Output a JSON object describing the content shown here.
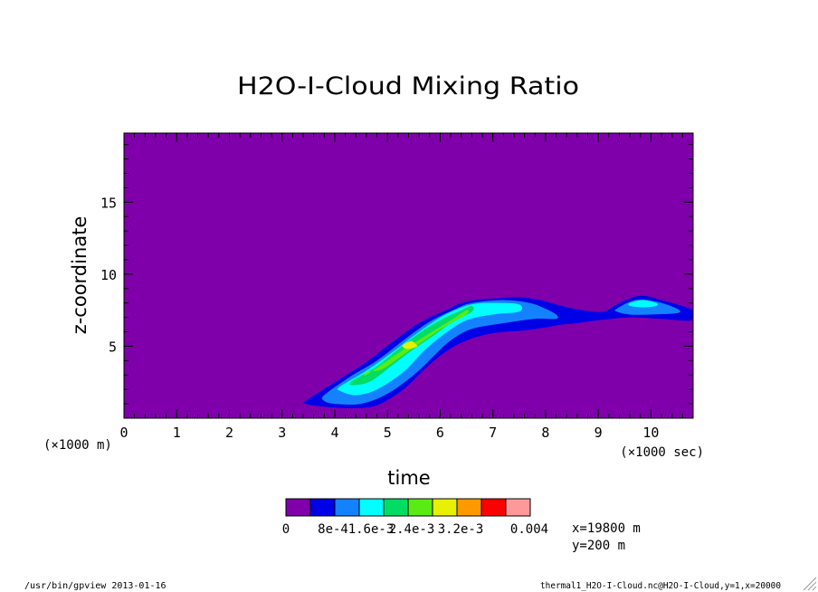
{
  "chart_data": {
    "type": "heatmap",
    "title": "H2O-I-Cloud Mixing Ratio",
    "xlabel": "time",
    "ylabel": "z-coordinate",
    "x_unit_label": "(×1000 sec)",
    "y_unit_label": "(×1000 m)",
    "xlim": [
      0,
      10.8
    ],
    "ylim": [
      0,
      19.8
    ],
    "x_ticks": [
      0,
      1,
      2,
      3,
      4,
      5,
      6,
      7,
      8,
      9,
      10
    ],
    "y_ticks": [
      5,
      10,
      15
    ],
    "levels": [
      "0",
      "8e-4",
      "1.6e-3",
      "2.4e-3",
      "3.2e-3",
      "0.004"
    ],
    "level_labels": [
      "0",
      "8e-4",
      "1.6e-3",
      "2.4e-3",
      "3.2e-3",
      "0.004"
    ],
    "colors": [
      "#7f00aa",
      "#0000e6",
      "#1482ff",
      "#00ffff",
      "#00dc64",
      "#5aeb14",
      "#e6f000",
      "#ff9900",
      "#ff0000",
      "#ff9999"
    ],
    "background_color": "#7f00aa",
    "contours": [
      {
        "level": 1,
        "color": "#0000e6",
        "upper": [
          [
            3.45,
            1.2
          ],
          [
            4.0,
            2.5
          ],
          [
            4.6,
            3.9
          ],
          [
            5.1,
            5.3
          ],
          [
            5.6,
            6.6
          ],
          [
            6.1,
            7.5
          ],
          [
            6.5,
            8.1
          ],
          [
            7.0,
            8.3
          ],
          [
            7.5,
            8.4
          ],
          [
            7.9,
            8.2
          ],
          [
            8.3,
            7.8
          ],
          [
            8.7,
            7.5
          ],
          [
            9.1,
            7.4
          ],
          [
            9.4,
            8.0
          ],
          [
            9.8,
            8.5
          ],
          [
            10.2,
            8.2
          ],
          [
            10.8,
            7.5
          ]
        ],
        "lower": [
          [
            10.8,
            6.8
          ],
          [
            10.2,
            6.9
          ],
          [
            9.6,
            7.0
          ],
          [
            9.0,
            6.8
          ],
          [
            8.6,
            6.6
          ],
          [
            8.3,
            6.5
          ],
          [
            8.0,
            6.3
          ],
          [
            7.6,
            6.1
          ],
          [
            7.0,
            5.9
          ],
          [
            6.5,
            5.4
          ],
          [
            6.1,
            4.6
          ],
          [
            5.7,
            3.4
          ],
          [
            5.3,
            2.0
          ],
          [
            4.8,
            0.9
          ],
          [
            4.3,
            0.7
          ],
          [
            3.8,
            0.8
          ],
          [
            3.45,
            1.0
          ]
        ]
      },
      {
        "level": 2,
        "color": "#1482ff",
        "upper": [
          [
            3.8,
            1.6
          ],
          [
            4.3,
            2.9
          ],
          [
            4.8,
            4.0
          ],
          [
            5.3,
            5.4
          ],
          [
            5.8,
            6.7
          ],
          [
            6.3,
            7.6
          ],
          [
            6.6,
            8.0
          ],
          [
            7.2,
            8.2
          ],
          [
            7.7,
            8.0
          ],
          [
            8.0,
            7.6
          ],
          [
            8.2,
            7.2
          ]
        ],
        "lower": [
          [
            8.2,
            6.9
          ],
          [
            7.8,
            6.9
          ],
          [
            7.2,
            6.6
          ],
          [
            6.6,
            6.2
          ],
          [
            6.2,
            5.4
          ],
          [
            5.9,
            4.4
          ],
          [
            5.5,
            3.0
          ],
          [
            5.0,
            1.7
          ],
          [
            4.5,
            1.0
          ],
          [
            4.0,
            1.0
          ],
          [
            3.8,
            1.2
          ]
        ]
      },
      {
        "level": 2,
        "color": "#1482ff",
        "upper": [
          [
            9.35,
            7.6
          ],
          [
            9.7,
            8.2
          ],
          [
            10.1,
            8.1
          ],
          [
            10.5,
            7.6
          ]
        ],
        "lower": [
          [
            10.5,
            7.3
          ],
          [
            10.0,
            7.2
          ],
          [
            9.6,
            7.2
          ],
          [
            9.35,
            7.4
          ]
        ]
      },
      {
        "level": 3,
        "color": "#00ffff",
        "upper": [
          [
            4.1,
            2.2
          ],
          [
            4.6,
            3.3
          ],
          [
            5.1,
            4.6
          ],
          [
            5.6,
            6.0
          ],
          [
            6.1,
            7.2
          ],
          [
            6.6,
            7.9
          ],
          [
            7.1,
            8.0
          ],
          [
            7.5,
            7.9
          ]
        ],
        "lower": [
          [
            7.5,
            7.4
          ],
          [
            7.0,
            7.2
          ],
          [
            6.5,
            6.8
          ],
          [
            6.1,
            5.9
          ],
          [
            5.7,
            4.7
          ],
          [
            5.3,
            3.2
          ],
          [
            4.8,
            2.0
          ],
          [
            4.4,
            1.6
          ],
          [
            4.1,
            1.9
          ]
        ]
      },
      {
        "level": 3,
        "color": "#00ffff",
        "upper": [
          [
            9.6,
            8.0
          ],
          [
            9.85,
            8.2
          ],
          [
            10.1,
            8.0
          ]
        ],
        "lower": [
          [
            10.1,
            7.8
          ],
          [
            9.85,
            7.7
          ],
          [
            9.6,
            7.8
          ]
        ]
      },
      {
        "level": 4,
        "color": "#00dc64",
        "upper": [
          [
            4.3,
            2.5
          ],
          [
            4.8,
            3.6
          ],
          [
            5.2,
            4.8
          ],
          [
            5.6,
            5.9
          ],
          [
            6.0,
            6.8
          ],
          [
            6.4,
            7.5
          ],
          [
            6.6,
            7.8
          ]
        ],
        "lower": [
          [
            6.6,
            7.4
          ],
          [
            6.2,
            6.6
          ],
          [
            5.9,
            5.8
          ],
          [
            5.5,
            4.8
          ],
          [
            5.1,
            3.7
          ],
          [
            4.7,
            2.6
          ],
          [
            4.4,
            2.3
          ]
        ]
      },
      {
        "level": 5,
        "color": "#5aeb14",
        "upper": [
          [
            4.6,
            3.0
          ],
          [
            5.0,
            4.0
          ],
          [
            5.4,
            5.0
          ],
          [
            5.8,
            5.9
          ],
          [
            6.2,
            6.8
          ],
          [
            6.5,
            7.5
          ]
        ],
        "lower": [
          [
            6.5,
            7.2
          ],
          [
            6.1,
            6.4
          ],
          [
            5.7,
            5.4
          ],
          [
            5.3,
            4.4
          ],
          [
            4.9,
            3.4
          ],
          [
            4.6,
            3.2
          ]
        ]
      },
      {
        "level": 6,
        "color": "#e6f000",
        "upper": [
          [
            5.3,
            5.1
          ],
          [
            5.45,
            5.35
          ],
          [
            5.55,
            5.1
          ]
        ],
        "lower": [
          [
            5.55,
            4.95
          ],
          [
            5.4,
            4.8
          ],
          [
            5.3,
            4.9
          ]
        ]
      }
    ]
  },
  "legend_info": {
    "x_value": "x=19800 m",
    "y_value": "y=200 m"
  },
  "footer": {
    "left": "/usr/bin/gpview  2013-01-16",
    "right": "thermal1_H2O-I-Cloud.nc@H2O-I-Cloud,y=1,x=20000"
  }
}
